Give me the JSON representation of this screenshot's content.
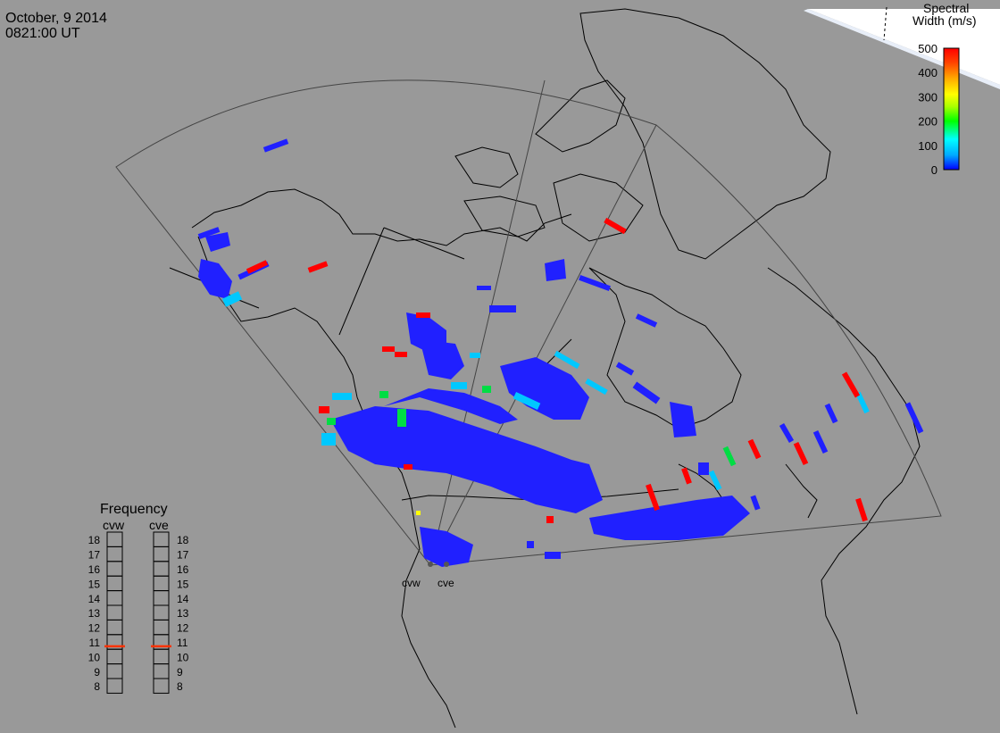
{
  "header": {
    "date": "October, 9 2014",
    "time": "0821:00 UT"
  },
  "colorbar": {
    "title_line1": "Spectral",
    "title_line2": "Width (m/s)",
    "ticks": [
      "500",
      "400",
      "300",
      "200",
      "100",
      "0"
    ],
    "stops": [
      "#0000ff",
      "#00aaff",
      "#00ffff",
      "#00ff00",
      "#aaff00",
      "#ffff00",
      "#ffaa00",
      "#ff4400",
      "#ff0000"
    ]
  },
  "frequency_panel": {
    "title": "Frequency",
    "col_left": "cvw",
    "col_right": "cve",
    "levels": [
      "18",
      "17",
      "16",
      "15",
      "14",
      "13",
      "12",
      "11",
      "10",
      "9",
      "8"
    ],
    "cvw_value": 10.7,
    "cve_value": 10.7,
    "marker_color": "#ff3300"
  },
  "radars": {
    "cvw": "cvw",
    "cve": "cve"
  },
  "colors": {
    "background": "#999999",
    "land_outline": "#000000",
    "fov_outline": "#444444",
    "polar_white": "#ffffff",
    "polar_edge": "#ddeeff",
    "echo_low": "#2020ff",
    "echo_mid": "#00c8ff",
    "echo_green": "#00dd44",
    "echo_yellow": "#ffff00",
    "echo_high": "#ff0000"
  }
}
